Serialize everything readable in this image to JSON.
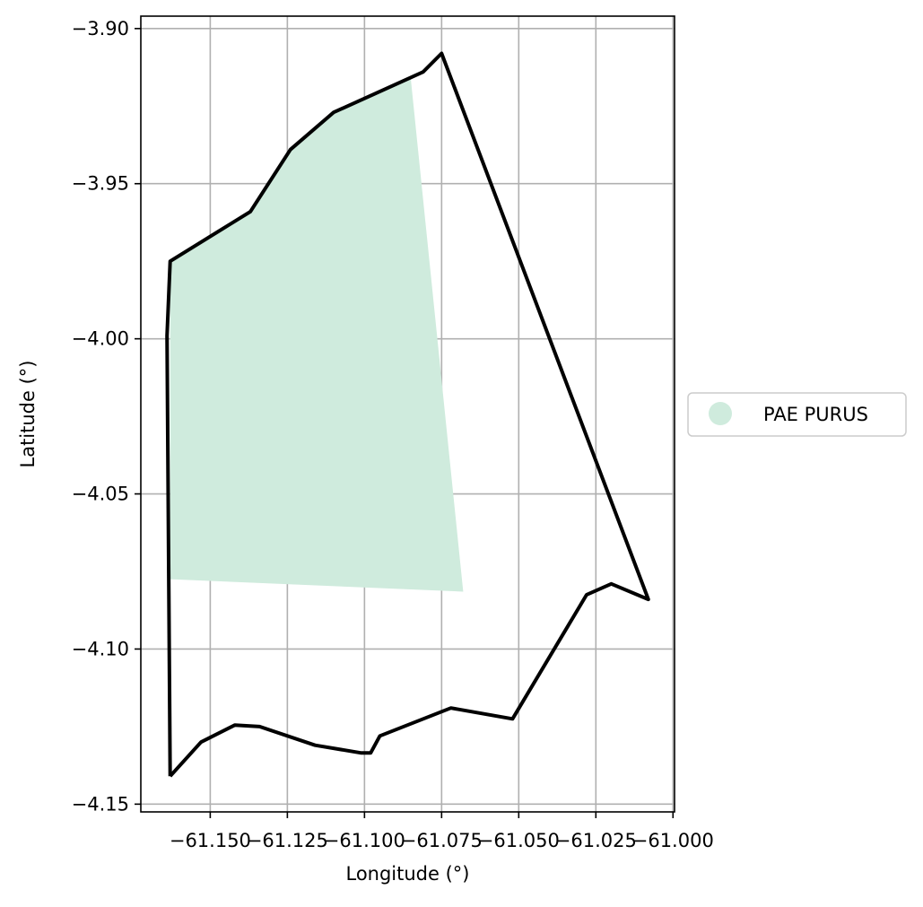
{
  "chart_data": {
    "type": "map",
    "title": "",
    "xlabel": "Longitude (°)",
    "ylabel": "Latitude (°)",
    "xlim": [
      -61.1725,
      -60.9995
    ],
    "ylim": [
      -4.1525,
      -3.896
    ],
    "grid": true,
    "xticks": [
      {
        "value": -61.15,
        "label": "−61.150"
      },
      {
        "value": -61.125,
        "label": "−61.125"
      },
      {
        "value": -61.1,
        "label": "−61.100"
      },
      {
        "value": -61.075,
        "label": "−61.075"
      },
      {
        "value": -61.05,
        "label": "−61.050"
      },
      {
        "value": -61.025,
        "label": "−61.025"
      },
      {
        "value": -61.0,
        "label": "−61.000"
      }
    ],
    "yticks": [
      {
        "value": -3.9,
        "label": "−3.90"
      },
      {
        "value": -3.95,
        "label": "−3.95"
      },
      {
        "value": -4.0,
        "label": "−4.00"
      },
      {
        "value": -4.05,
        "label": "−4.05"
      },
      {
        "value": -4.1,
        "label": "−4.10"
      },
      {
        "value": -4.15,
        "label": "−4.15"
      }
    ],
    "boundary": {
      "color": "#000000",
      "points": [
        [
          -61.163,
          -4.141
        ],
        [
          -61.153,
          -4.13
        ],
        [
          -61.142,
          -4.1245
        ],
        [
          -61.134,
          -4.125
        ],
        [
          -61.116,
          -4.131
        ],
        [
          -61.101,
          -4.1335
        ],
        [
          -61.098,
          -4.1335
        ],
        [
          -61.095,
          -4.128
        ],
        [
          -61.072,
          -4.119
        ],
        [
          -61.052,
          -4.1225
        ],
        [
          -61.028,
          -4.0825
        ],
        [
          -61.02,
          -4.079
        ],
        [
          -61.008,
          -4.084
        ],
        [
          -61.075,
          -3.908
        ],
        [
          -61.081,
          -3.914
        ],
        [
          -61.11,
          -3.927
        ],
        [
          -61.124,
          -3.939
        ],
        [
          -61.137,
          -3.959
        ],
        [
          -61.163,
          -3.975
        ],
        [
          -61.164,
          -3.999
        ],
        [
          -61.163,
          -4.141
        ]
      ]
    },
    "fill": {
      "name": "PAE PURUS",
      "color": "#cfebdd",
      "points": [
        [
          -61.163,
          -3.975
        ],
        [
          -61.137,
          -3.959
        ],
        [
          -61.124,
          -3.939
        ],
        [
          -61.11,
          -3.927
        ],
        [
          -61.085,
          -3.916
        ],
        [
          -61.068,
          -4.0815
        ],
        [
          -61.163,
          -4.0775
        ]
      ]
    },
    "legend": {
      "placement": "center-right-outside",
      "entries": [
        {
          "label": "PAE PURUS",
          "color": "#cfebdd"
        }
      ]
    }
  }
}
